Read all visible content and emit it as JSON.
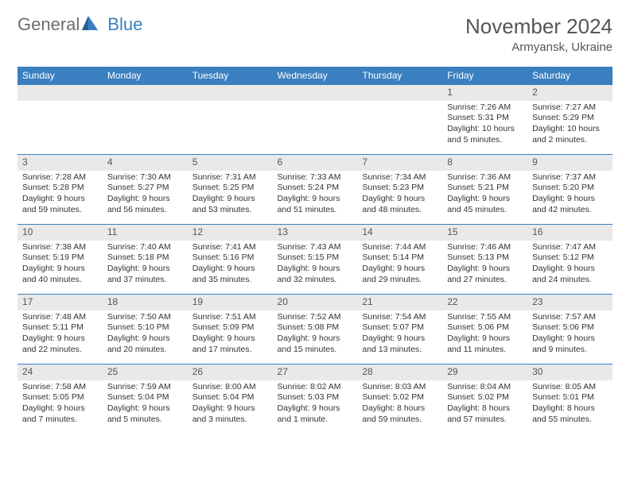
{
  "brand": {
    "part1": "General",
    "part2": "Blue"
  },
  "title": {
    "month": "November 2024",
    "location": "Armyansk, Ukraine"
  },
  "colors": {
    "header_bg": "#3a7fbf",
    "header_text": "#ffffff",
    "daybar_bg": "#e9e9e9",
    "row_border": "#3a7fbf",
    "body_text": "#333333",
    "title_text": "#555555"
  },
  "weekdays": [
    "Sunday",
    "Monday",
    "Tuesday",
    "Wednesday",
    "Thursday",
    "Friday",
    "Saturday"
  ],
  "weeks": [
    [
      null,
      null,
      null,
      null,
      null,
      {
        "n": "1",
        "sunrise": "Sunrise: 7:26 AM",
        "sunset": "Sunset: 5:31 PM",
        "daylight1": "Daylight: 10 hours",
        "daylight2": "and 5 minutes."
      },
      {
        "n": "2",
        "sunrise": "Sunrise: 7:27 AM",
        "sunset": "Sunset: 5:29 PM",
        "daylight1": "Daylight: 10 hours",
        "daylight2": "and 2 minutes."
      }
    ],
    [
      {
        "n": "3",
        "sunrise": "Sunrise: 7:28 AM",
        "sunset": "Sunset: 5:28 PM",
        "daylight1": "Daylight: 9 hours",
        "daylight2": "and 59 minutes."
      },
      {
        "n": "4",
        "sunrise": "Sunrise: 7:30 AM",
        "sunset": "Sunset: 5:27 PM",
        "daylight1": "Daylight: 9 hours",
        "daylight2": "and 56 minutes."
      },
      {
        "n": "5",
        "sunrise": "Sunrise: 7:31 AM",
        "sunset": "Sunset: 5:25 PM",
        "daylight1": "Daylight: 9 hours",
        "daylight2": "and 53 minutes."
      },
      {
        "n": "6",
        "sunrise": "Sunrise: 7:33 AM",
        "sunset": "Sunset: 5:24 PM",
        "daylight1": "Daylight: 9 hours",
        "daylight2": "and 51 minutes."
      },
      {
        "n": "7",
        "sunrise": "Sunrise: 7:34 AM",
        "sunset": "Sunset: 5:23 PM",
        "daylight1": "Daylight: 9 hours",
        "daylight2": "and 48 minutes."
      },
      {
        "n": "8",
        "sunrise": "Sunrise: 7:36 AM",
        "sunset": "Sunset: 5:21 PM",
        "daylight1": "Daylight: 9 hours",
        "daylight2": "and 45 minutes."
      },
      {
        "n": "9",
        "sunrise": "Sunrise: 7:37 AM",
        "sunset": "Sunset: 5:20 PM",
        "daylight1": "Daylight: 9 hours",
        "daylight2": "and 42 minutes."
      }
    ],
    [
      {
        "n": "10",
        "sunrise": "Sunrise: 7:38 AM",
        "sunset": "Sunset: 5:19 PM",
        "daylight1": "Daylight: 9 hours",
        "daylight2": "and 40 minutes."
      },
      {
        "n": "11",
        "sunrise": "Sunrise: 7:40 AM",
        "sunset": "Sunset: 5:18 PM",
        "daylight1": "Daylight: 9 hours",
        "daylight2": "and 37 minutes."
      },
      {
        "n": "12",
        "sunrise": "Sunrise: 7:41 AM",
        "sunset": "Sunset: 5:16 PM",
        "daylight1": "Daylight: 9 hours",
        "daylight2": "and 35 minutes."
      },
      {
        "n": "13",
        "sunrise": "Sunrise: 7:43 AM",
        "sunset": "Sunset: 5:15 PM",
        "daylight1": "Daylight: 9 hours",
        "daylight2": "and 32 minutes."
      },
      {
        "n": "14",
        "sunrise": "Sunrise: 7:44 AM",
        "sunset": "Sunset: 5:14 PM",
        "daylight1": "Daylight: 9 hours",
        "daylight2": "and 29 minutes."
      },
      {
        "n": "15",
        "sunrise": "Sunrise: 7:46 AM",
        "sunset": "Sunset: 5:13 PM",
        "daylight1": "Daylight: 9 hours",
        "daylight2": "and 27 minutes."
      },
      {
        "n": "16",
        "sunrise": "Sunrise: 7:47 AM",
        "sunset": "Sunset: 5:12 PM",
        "daylight1": "Daylight: 9 hours",
        "daylight2": "and 24 minutes."
      }
    ],
    [
      {
        "n": "17",
        "sunrise": "Sunrise: 7:48 AM",
        "sunset": "Sunset: 5:11 PM",
        "daylight1": "Daylight: 9 hours",
        "daylight2": "and 22 minutes."
      },
      {
        "n": "18",
        "sunrise": "Sunrise: 7:50 AM",
        "sunset": "Sunset: 5:10 PM",
        "daylight1": "Daylight: 9 hours",
        "daylight2": "and 20 minutes."
      },
      {
        "n": "19",
        "sunrise": "Sunrise: 7:51 AM",
        "sunset": "Sunset: 5:09 PM",
        "daylight1": "Daylight: 9 hours",
        "daylight2": "and 17 minutes."
      },
      {
        "n": "20",
        "sunrise": "Sunrise: 7:52 AM",
        "sunset": "Sunset: 5:08 PM",
        "daylight1": "Daylight: 9 hours",
        "daylight2": "and 15 minutes."
      },
      {
        "n": "21",
        "sunrise": "Sunrise: 7:54 AM",
        "sunset": "Sunset: 5:07 PM",
        "daylight1": "Daylight: 9 hours",
        "daylight2": "and 13 minutes."
      },
      {
        "n": "22",
        "sunrise": "Sunrise: 7:55 AM",
        "sunset": "Sunset: 5:06 PM",
        "daylight1": "Daylight: 9 hours",
        "daylight2": "and 11 minutes."
      },
      {
        "n": "23",
        "sunrise": "Sunrise: 7:57 AM",
        "sunset": "Sunset: 5:06 PM",
        "daylight1": "Daylight: 9 hours",
        "daylight2": "and 9 minutes."
      }
    ],
    [
      {
        "n": "24",
        "sunrise": "Sunrise: 7:58 AM",
        "sunset": "Sunset: 5:05 PM",
        "daylight1": "Daylight: 9 hours",
        "daylight2": "and 7 minutes."
      },
      {
        "n": "25",
        "sunrise": "Sunrise: 7:59 AM",
        "sunset": "Sunset: 5:04 PM",
        "daylight1": "Daylight: 9 hours",
        "daylight2": "and 5 minutes."
      },
      {
        "n": "26",
        "sunrise": "Sunrise: 8:00 AM",
        "sunset": "Sunset: 5:04 PM",
        "daylight1": "Daylight: 9 hours",
        "daylight2": "and 3 minutes."
      },
      {
        "n": "27",
        "sunrise": "Sunrise: 8:02 AM",
        "sunset": "Sunset: 5:03 PM",
        "daylight1": "Daylight: 9 hours",
        "daylight2": "and 1 minute."
      },
      {
        "n": "28",
        "sunrise": "Sunrise: 8:03 AM",
        "sunset": "Sunset: 5:02 PM",
        "daylight1": "Daylight: 8 hours",
        "daylight2": "and 59 minutes."
      },
      {
        "n": "29",
        "sunrise": "Sunrise: 8:04 AM",
        "sunset": "Sunset: 5:02 PM",
        "daylight1": "Daylight: 8 hours",
        "daylight2": "and 57 minutes."
      },
      {
        "n": "30",
        "sunrise": "Sunrise: 8:05 AM",
        "sunset": "Sunset: 5:01 PM",
        "daylight1": "Daylight: 8 hours",
        "daylight2": "and 55 minutes."
      }
    ]
  ]
}
